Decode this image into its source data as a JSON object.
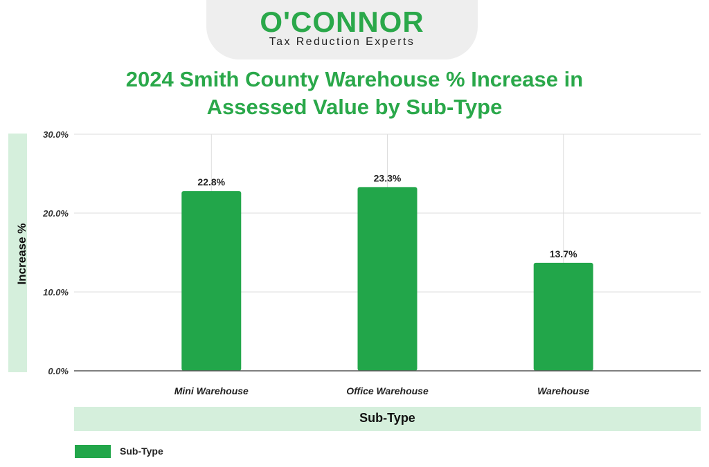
{
  "logo": {
    "wordmark": "O'CONNOR",
    "tagline": "Tax Reduction Experts",
    "color": "#2aa84a"
  },
  "chart_data": {
    "type": "bar",
    "title_line1": "2024 Smith County Warehouse % Increase in",
    "title_line2": "Assessed Value by Sub-Type",
    "xlabel": "Sub-Type",
    "ylabel": "Increase %",
    "categories": [
      "Mini Warehouse",
      "Office Warehouse",
      "Warehouse"
    ],
    "series": [
      {
        "name": "Sub-Type",
        "values": [
          22.8,
          23.3,
          13.7
        ],
        "value_labels": [
          "22.8%",
          "23.3%",
          "13.7%"
        ],
        "color": "#22a64a"
      }
    ],
    "ylim": [
      0,
      30
    ],
    "y_ticks": [
      0,
      10,
      20,
      30
    ],
    "y_tick_labels": [
      "0.0%",
      "10.0%",
      "20.0%",
      "30.0%"
    ],
    "grid": true,
    "legend_position": "bottom-left"
  }
}
